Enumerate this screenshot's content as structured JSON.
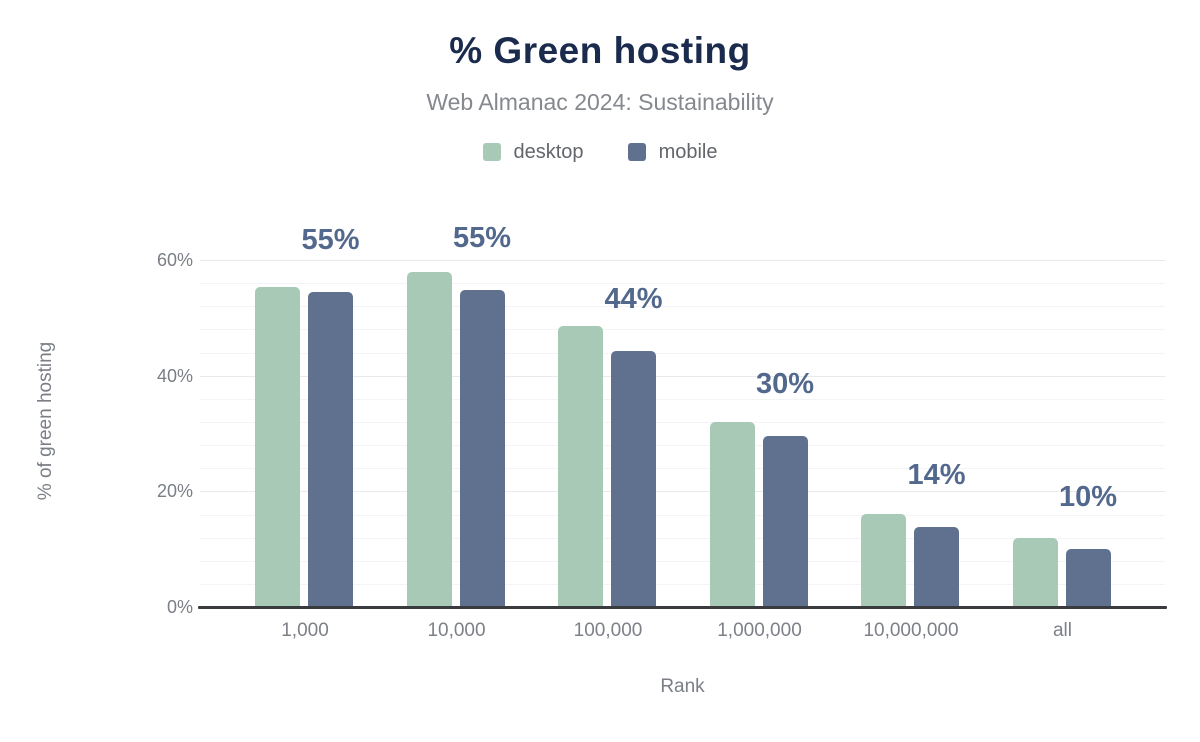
{
  "header": {
    "title": "% Green hosting",
    "subtitle": "Web Almanac 2024: Sustainability"
  },
  "legend": [
    {
      "label": "desktop",
      "color": "#a9c9b7",
      "icon": "desktop-series-swatch"
    },
    {
      "label": "mobile",
      "color": "#5f718e",
      "icon": "mobile-series-swatch"
    }
  ],
  "chart_data": {
    "type": "bar",
    "title": "% Green hosting",
    "subtitle": "Web Almanac 2024: Sustainability",
    "categories": [
      "1,000",
      "10,000",
      "100,000",
      "1,000,000",
      "10,000,000",
      "all"
    ],
    "series": [
      {
        "name": "desktop",
        "color": "#a9c9b7",
        "values": [
          55.4,
          58.0,
          48.6,
          32.0,
          16.1,
          12.0
        ]
      },
      {
        "name": "mobile",
        "color": "#5f718e",
        "values": [
          54.5,
          54.8,
          44.2,
          29.5,
          13.8,
          10.0
        ]
      }
    ],
    "bar_labels": [
      "55%",
      "55%",
      "44%",
      "30%",
      "14%",
      "10%"
    ],
    "bar_labels_refer_to": "mobile",
    "xlabel": "Rank",
    "ylabel": "% of green hosting",
    "yticks": [
      {
        "value": 0,
        "label": "0%"
      },
      {
        "value": 20,
        "label": "20%"
      },
      {
        "value": 40,
        "label": "40%"
      },
      {
        "value": 60,
        "label": "60%"
      }
    ],
    "ylim": [
      0,
      69
    ],
    "grid": {
      "horizontal": true,
      "minor_step_pct": 4,
      "major_step_pct": 20
    },
    "legend_position": "top"
  },
  "colors": {
    "title": "#1b2b4d",
    "subtitle": "#85888e",
    "bar_label": "#53688d",
    "axis_line": "#3a3b3e",
    "tick_text": "#7a7e85",
    "grid_major": "#e9eaec",
    "grid_minor": "#f4f4f6",
    "background": "#ffffff"
  }
}
